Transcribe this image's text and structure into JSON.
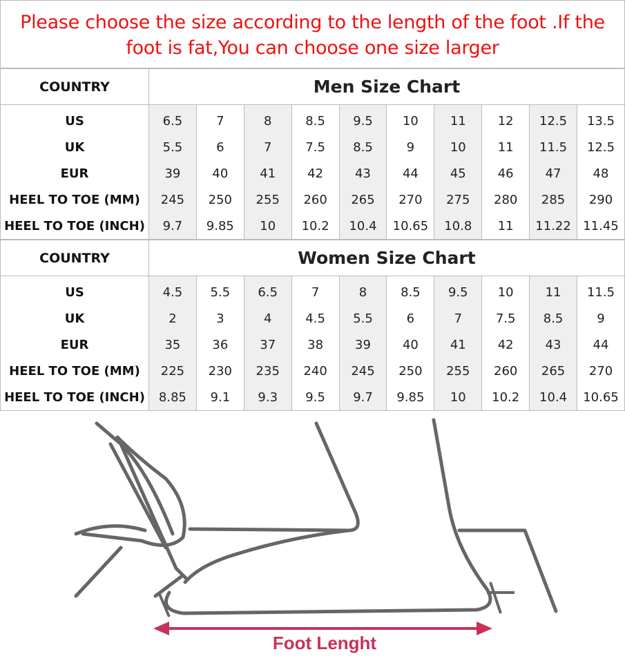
{
  "notice": "Please choose the size according to the length of the foot .If the foot is fat,You can choose one size larger",
  "men": {
    "country_label": "COUNTRY",
    "title": "Men Size Chart",
    "rows": [
      {
        "label": "US",
        "values": [
          "6.5",
          "7",
          "8",
          "8.5",
          "9.5",
          "10",
          "11",
          "12",
          "12.5",
          "13.5"
        ]
      },
      {
        "label": "UK",
        "values": [
          "5.5",
          "6",
          "7",
          "7.5",
          "8.5",
          "9",
          "10",
          "11",
          "11.5",
          "12.5"
        ]
      },
      {
        "label": "EUR",
        "values": [
          "39",
          "40",
          "41",
          "42",
          "43",
          "44",
          "45",
          "46",
          "47",
          "48"
        ]
      },
      {
        "label": "HEEL TO TOE (MM)",
        "values": [
          "245",
          "250",
          "255",
          "260",
          "265",
          "270",
          "275",
          "280",
          "285",
          "290"
        ]
      },
      {
        "label": "HEEL TO TOE (INCH)",
        "values": [
          "9.7",
          "9.85",
          "10",
          "10.2",
          "10.4",
          "10.65",
          "10.8",
          "11",
          "11.22",
          "11.45"
        ]
      }
    ]
  },
  "women": {
    "country_label": "COUNTRY",
    "title": "Women Size Chart",
    "rows": [
      {
        "label": "US",
        "values": [
          "4.5",
          "5.5",
          "6.5",
          "7",
          "8",
          "8.5",
          "9.5",
          "10",
          "11",
          "11.5"
        ]
      },
      {
        "label": "UK",
        "values": [
          "2",
          "3",
          "4",
          "4.5",
          "5.5",
          "6",
          "7",
          "7.5",
          "8.5",
          "9"
        ]
      },
      {
        "label": "EUR",
        "values": [
          "35",
          "36",
          "37",
          "38",
          "39",
          "40",
          "41",
          "42",
          "43",
          "44"
        ]
      },
      {
        "label": "HEEL TO TOE (MM)",
        "values": [
          "225",
          "230",
          "235",
          "240",
          "245",
          "250",
          "255",
          "260",
          "265",
          "270"
        ]
      },
      {
        "label": "HEEL TO TOE (INCH)",
        "values": [
          "8.85",
          "9.1",
          "9.3",
          "9.5",
          "9.7",
          "9.85",
          "10",
          "10.2",
          "10.4",
          "10.65"
        ]
      }
    ]
  },
  "illustration": {
    "caption": "Foot Lenght",
    "caption_color": "#c8325a",
    "notice_color": "#f01010"
  }
}
